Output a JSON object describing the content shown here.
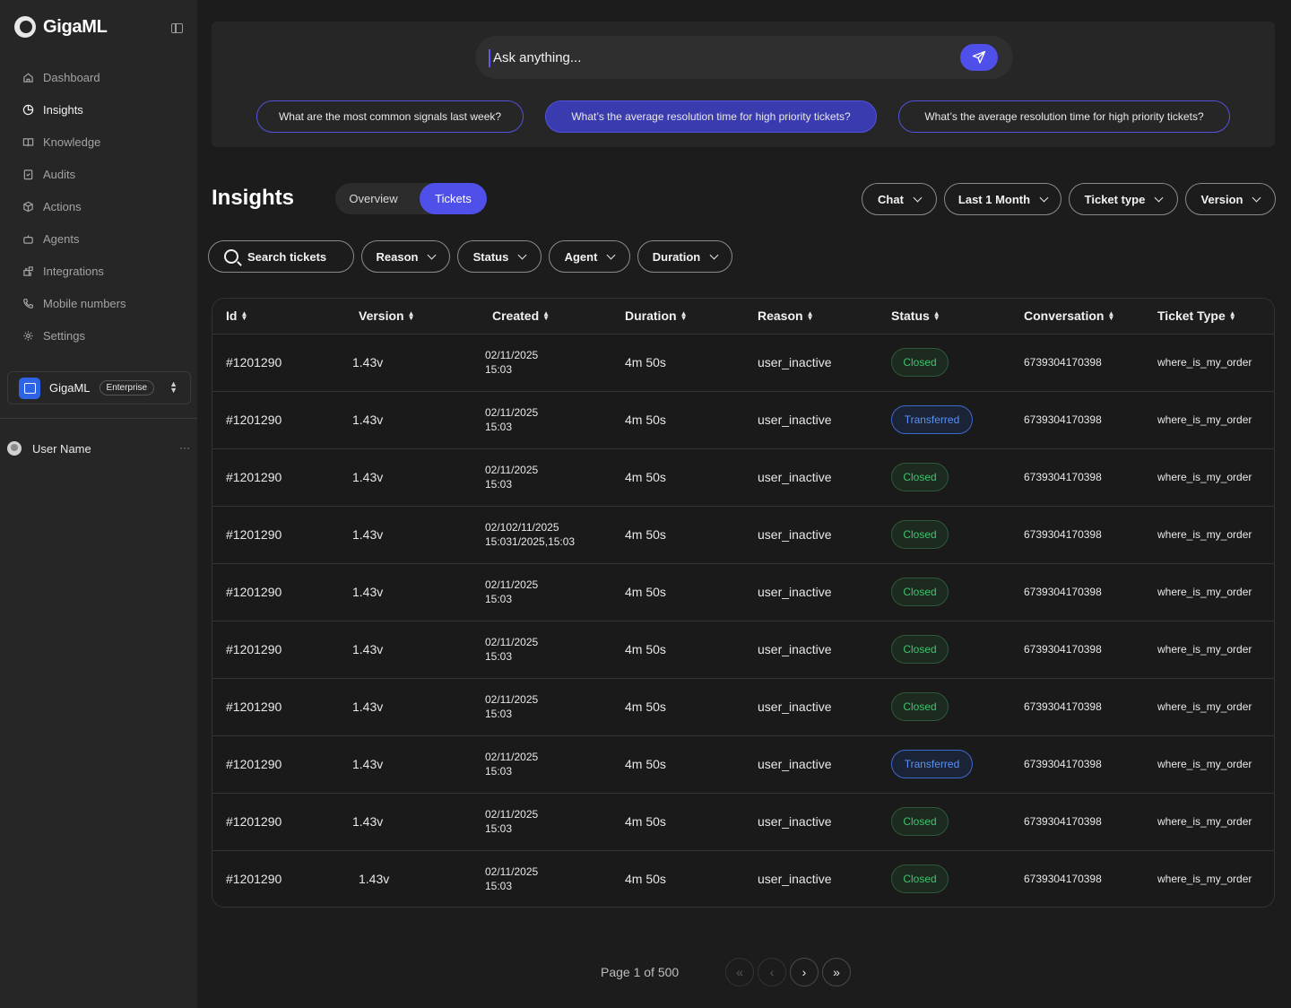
{
  "brand": {
    "name": "GigaML"
  },
  "sidebar": {
    "items": [
      {
        "label": "Dashboard",
        "icon": "home-icon",
        "active": false
      },
      {
        "label": "Insights",
        "icon": "pie-chart-icon",
        "active": true
      },
      {
        "label": "Knowledge",
        "icon": "book-icon",
        "active": false
      },
      {
        "label": "Audits",
        "icon": "clipboard-check-icon",
        "active": false
      },
      {
        "label": "Actions",
        "icon": "cube-icon",
        "active": false
      },
      {
        "label": "Agents",
        "icon": "bot-icon",
        "active": false
      },
      {
        "label": "Integrations",
        "icon": "puzzle-icon",
        "active": false
      },
      {
        "label": "Mobile numbers",
        "icon": "phone-icon",
        "active": false
      },
      {
        "label": "Settings",
        "icon": "gear-icon",
        "active": false
      }
    ],
    "org": {
      "name": "GigaML",
      "plan": "Enterprise"
    },
    "user": {
      "name": "User Name",
      "more": "···"
    }
  },
  "ask": {
    "placeholder": "Ask anything...",
    "suggestions": [
      "What are the most common signals last week?",
      "What’s the average resolution time for high priority tickets?",
      "What’s the average resolution time for high priority tickets?"
    ]
  },
  "page": {
    "title": "Insights",
    "tabs": {
      "overview": "Overview",
      "tickets": "Tickets"
    },
    "top_filters": {
      "chat": "Chat",
      "range": "Last 1 Month",
      "ticket_type": "Ticket type",
      "version": "Version"
    },
    "filters": {
      "search": "Search tickets",
      "reason": "Reason",
      "status": "Status",
      "agent": "Agent",
      "duration": "Duration"
    }
  },
  "table": {
    "columns": [
      "Id",
      "Version",
      "Created",
      "Duration",
      "Reason",
      "Status",
      "Conversation",
      "Ticket Type"
    ],
    "rows": [
      {
        "id": "#1201290",
        "version": "1.43v",
        "date": "02/11/2025",
        "time": "15:03",
        "duration": "4m 50s",
        "reason": "user_inactive",
        "status": "Closed",
        "conversation": "6739304170398",
        "type": "where_is_my_order"
      },
      {
        "id": "#1201290",
        "version": "1.43v",
        "date": "02/11/2025",
        "time": "15:03",
        "duration": "4m 50s",
        "reason": "user_inactive",
        "status": "Transferred",
        "conversation": "6739304170398",
        "type": "where_is_my_order"
      },
      {
        "id": "#1201290",
        "version": "1.43v",
        "date": "02/11/2025",
        "time": "15:03",
        "duration": "4m 50s",
        "reason": "user_inactive",
        "status": "Closed",
        "conversation": "6739304170398",
        "type": "where_is_my_order"
      },
      {
        "id": "#1201290",
        "version": "1.43v",
        "date": "02/102/11/2025",
        "time": "15:031/2025,15:03",
        "duration": "4m 50s",
        "reason": "user_inactive",
        "status": "Closed",
        "conversation": "6739304170398",
        "type": "where_is_my_order"
      },
      {
        "id": "#1201290",
        "version": "1.43v",
        "date": "02/11/2025",
        "time": "15:03",
        "duration": "4m 50s",
        "reason": "user_inactive",
        "status": "Closed",
        "conversation": "6739304170398",
        "type": "where_is_my_order"
      },
      {
        "id": "#1201290",
        "version": "1.43v",
        "date": "02/11/2025",
        "time": "15:03",
        "duration": "4m 50s",
        "reason": "user_inactive",
        "status": "Closed",
        "conversation": "6739304170398",
        "type": "where_is_my_order"
      },
      {
        "id": "#1201290",
        "version": "1.43v",
        "date": "02/11/2025",
        "time": "15:03",
        "duration": "4m 50s",
        "reason": "user_inactive",
        "status": "Closed",
        "conversation": "6739304170398",
        "type": "where_is_my_order"
      },
      {
        "id": "#1201290",
        "version": "1.43v",
        "date": "02/11/2025",
        "time": "15:03",
        "duration": "4m 50s",
        "reason": "user_inactive",
        "status": "Transferred",
        "conversation": "6739304170398",
        "type": "where_is_my_order"
      },
      {
        "id": "#1201290",
        "version": "1.43v",
        "date": "02/11/2025",
        "time": "15:03",
        "duration": "4m 50s",
        "reason": "user_inactive",
        "status": "Closed",
        "conversation": "6739304170398",
        "type": "where_is_my_order"
      },
      {
        "id": "#1201290",
        "version": "1.43v",
        "date": "02/11/2025",
        "time": "15:03",
        "duration": "4m 50s",
        "reason": "user_inactive",
        "status": "Closed",
        "conversation": "6739304170398",
        "type": "where_is_my_order"
      }
    ]
  },
  "pagination": {
    "label": "Page 1 of 500",
    "first": "«",
    "prev": "‹",
    "next": "›",
    "last": "»"
  },
  "colors": {
    "accent": "#4f4fe9",
    "closed": "#3ec46a",
    "transferred": "#5a92f5",
    "background": "#1c1c1c",
    "sidebar": "#262626"
  }
}
